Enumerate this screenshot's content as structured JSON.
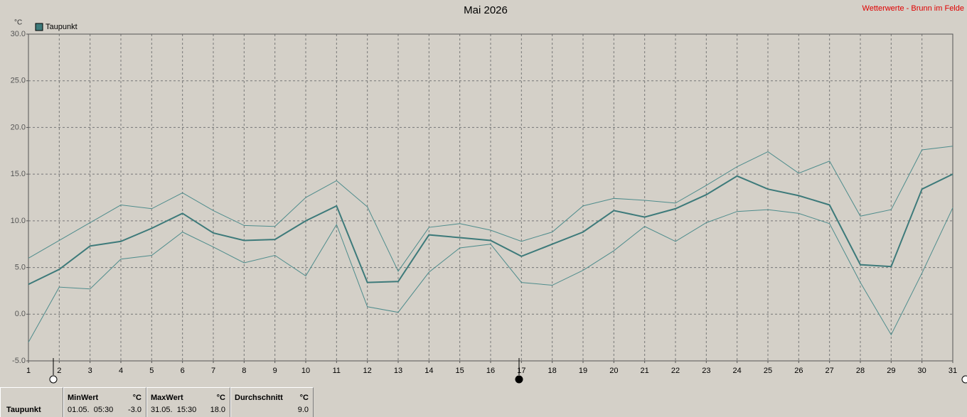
{
  "chart_data": {
    "type": "line",
    "title": "Mai 2026",
    "source": "Wetterwerte - Brunn im Felde",
    "y_unit": "°C",
    "x": [
      1,
      2,
      3,
      4,
      5,
      6,
      7,
      8,
      9,
      10,
      11,
      12,
      13,
      14,
      15,
      16,
      17,
      18,
      19,
      20,
      21,
      22,
      23,
      24,
      25,
      26,
      27,
      28,
      29,
      30,
      31
    ],
    "xlim": [
      1,
      31
    ],
    "ylim": [
      -5,
      30
    ],
    "yticks": [
      {
        "value": -5,
        "label": "-5.0"
      },
      {
        "value": 0,
        "label": "0.0"
      },
      {
        "value": 5,
        "label": "5.0"
      },
      {
        "value": 10,
        "label": "10.0"
      },
      {
        "value": 15,
        "label": "15.0"
      },
      {
        "value": 20,
        "label": "20.0"
      },
      {
        "value": 25,
        "label": "25.0"
      },
      {
        "value": 30,
        "label": "30.0"
      }
    ],
    "grid": true,
    "series": [
      {
        "name": "Taupunkt",
        "color": "#3d7a7a",
        "values": [
          3.2,
          4.8,
          7.3,
          7.8,
          9.2,
          10.8,
          8.7,
          7.9,
          8.0,
          10.0,
          11.6,
          3.4,
          3.5,
          8.5,
          8.2,
          7.9,
          6.2,
          7.5,
          8.8,
          11.1,
          10.4,
          11.3,
          12.8,
          14.8,
          13.4,
          12.7,
          11.7,
          5.3,
          5.1,
          13.4,
          15.0
        ]
      },
      {
        "color": "#4e8c8c",
        "values": [
          6.0,
          7.9,
          9.8,
          11.7,
          11.3,
          13.0,
          11.1,
          9.5,
          9.4,
          12.5,
          14.3,
          11.5,
          4.6,
          9.3,
          9.7,
          9.0,
          7.8,
          8.8,
          11.6,
          12.4,
          12.2,
          11.9,
          13.8,
          15.8,
          17.4,
          15.1,
          16.4,
          10.5,
          11.2,
          17.6,
          18.0
        ]
      },
      {
        "color": "#4e8c8c",
        "values": [
          -3.0,
          2.9,
          2.7,
          5.9,
          6.3,
          8.8,
          7.2,
          5.5,
          6.3,
          4.1,
          9.6,
          0.8,
          0.2,
          4.5,
          7.1,
          7.5,
          3.4,
          3.1,
          4.7,
          6.8,
          9.4,
          7.8,
          9.8,
          11.0,
          11.2,
          10.8,
          9.7,
          3.4,
          -2.2,
          4.4,
          11.4
        ]
      }
    ]
  },
  "summary": {
    "name": "Taupunkt",
    "min": {
      "header": "MinWert",
      "unit": "°C",
      "time": "01.05.  05:30",
      "value": "-3.0"
    },
    "max": {
      "header": "MaxWert",
      "unit": "°C",
      "time": "31.05.  15:30",
      "value": "18.0"
    },
    "avg": {
      "header": "Durchschnitt",
      "unit": "°C",
      "value": "9.0"
    }
  }
}
